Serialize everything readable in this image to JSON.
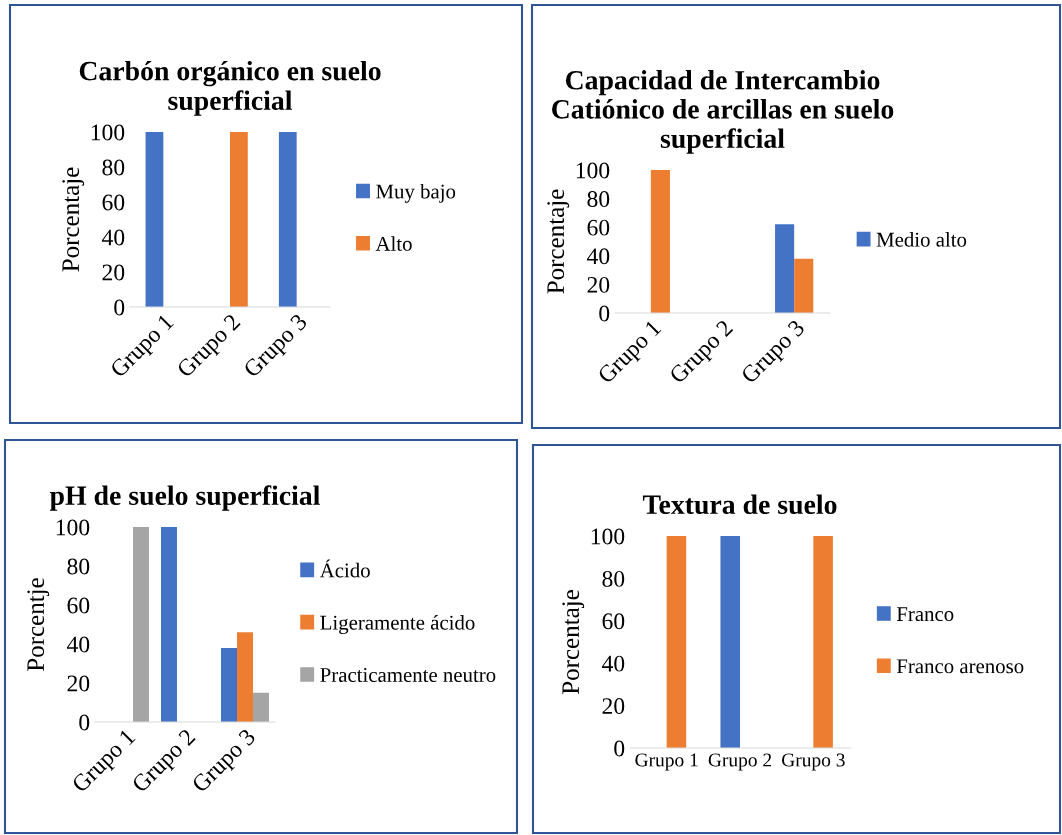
{
  "chart_data": [
    {
      "type": "bar",
      "title": "Carbón orgánico en suelo\nsuperficial",
      "ylabel": "Porcentaje",
      "categories": [
        "Grupo 1",
        "Grupo 2",
        "Grupo 3"
      ],
      "series": [
        {
          "name": "Muy bajo",
          "color": "#4472c4",
          "values": [
            100,
            0,
            100
          ]
        },
        {
          "name": "Alto",
          "color": "#ed7d31",
          "values": [
            0,
            100,
            0
          ]
        }
      ],
      "ylim": [
        0,
        100
      ],
      "yticks": [
        0,
        20,
        40,
        60,
        80,
        100
      ],
      "legend": "right",
      "grid": false
    },
    {
      "type": "bar",
      "title": "Capacidad de Intercambio\nCatiónico de arcillas en suelo\nsuperficial",
      "ylabel": "Porcentaje",
      "categories": [
        "Grupo 1",
        "Grupo 2",
        "Grupo 3"
      ],
      "series": [
        {
          "name": "Medio alto",
          "color": "#4472c4",
          "values": [
            0,
            0,
            62
          ]
        },
        {
          "color": "#ed7d31",
          "values": [
            100,
            0,
            38
          ]
        }
      ],
      "ylim": [
        0,
        100
      ],
      "yticks": [
        0,
        20,
        40,
        60,
        80,
        100
      ],
      "legend": "right",
      "grid": false
    },
    {
      "type": "bar",
      "title": "pH de suelo superficial",
      "ylabel": "Porcentje",
      "categories": [
        "Grupo 1",
        "Grupo 2",
        "Grupo 3"
      ],
      "series": [
        {
          "name": "Ácido",
          "color": "#4472c4",
          "values": [
            0,
            100,
            38
          ]
        },
        {
          "name": "Ligeramente ácido",
          "color": "#ed7d31",
          "values": [
            0,
            0,
            46
          ]
        },
        {
          "name": "Practicamente neutro",
          "color": "#a5a5a5",
          "values": [
            100,
            0,
            15
          ]
        }
      ],
      "ylim": [
        0,
        100
      ],
      "yticks": [
        0,
        20,
        40,
        60,
        80,
        100
      ],
      "legend": "right",
      "grid": false
    },
    {
      "type": "bar",
      "title": "Textura de suelo",
      "ylabel": "Porcentaje",
      "categories": [
        "Grupo 1",
        "Grupo 2",
        "Grupo 3"
      ],
      "series": [
        {
          "name": "Franco",
          "color": "#4472c4",
          "values": [
            0,
            100,
            0
          ]
        },
        {
          "name": "Franco arenoso",
          "color": "#ed7d31",
          "values": [
            100,
            0,
            100
          ]
        }
      ],
      "ylim": [
        0,
        100
      ],
      "yticks": [
        0,
        20,
        40,
        60,
        80,
        100
      ],
      "legend": "right",
      "grid": false
    }
  ]
}
